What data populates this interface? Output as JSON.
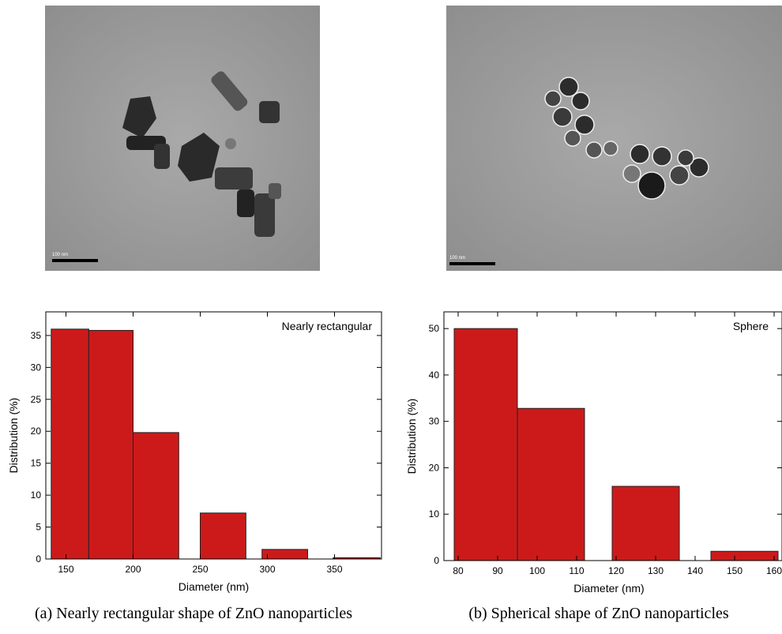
{
  "images": [
    {
      "scale_bar": "100 nm"
    },
    {
      "scale_bar": "100 nm"
    }
  ],
  "chart_data": [
    {
      "type": "histogram",
      "annotation": "Nearly rectangular",
      "x_label": "Diameter (nm)",
      "y_label": "Distribution (%)",
      "bins": [
        139,
        167,
        200,
        234,
        250,
        284,
        296,
        330,
        349,
        384
      ],
      "values": [
        36,
        35.8,
        19.8,
        0,
        7.2,
        0,
        1.5,
        0,
        0.2
      ],
      "color": "#cc1a1a",
      "xlim": [
        135,
        385
      ],
      "xticks": [
        150,
        200,
        250,
        300,
        350
      ],
      "ylim": [
        0,
        38.7
      ],
      "yticks": [
        0,
        5,
        10,
        15,
        20,
        25,
        30,
        35
      ]
    },
    {
      "type": "histogram",
      "annotation": "Sphere",
      "x_label": "Diameter (nm)",
      "y_label": "Distribution (%)",
      "bins": [
        79,
        95,
        112,
        119,
        136,
        144,
        161
      ],
      "values": [
        50,
        32.8,
        0,
        16,
        0,
        2
      ],
      "color": "#cc1a1a",
      "xlim": [
        76.4,
        162
      ],
      "xticks": [
        80,
        90,
        100,
        110,
        120,
        130,
        140,
        150,
        160
      ],
      "ylim": [
        0,
        53.6
      ],
      "yticks": [
        0,
        10,
        20,
        30,
        40,
        50
      ]
    }
  ],
  "captions": [
    "(a) Nearly rectangular shape of ZnO nanoparticles",
    "(b) Spherical shape of ZnO nanoparticles"
  ]
}
